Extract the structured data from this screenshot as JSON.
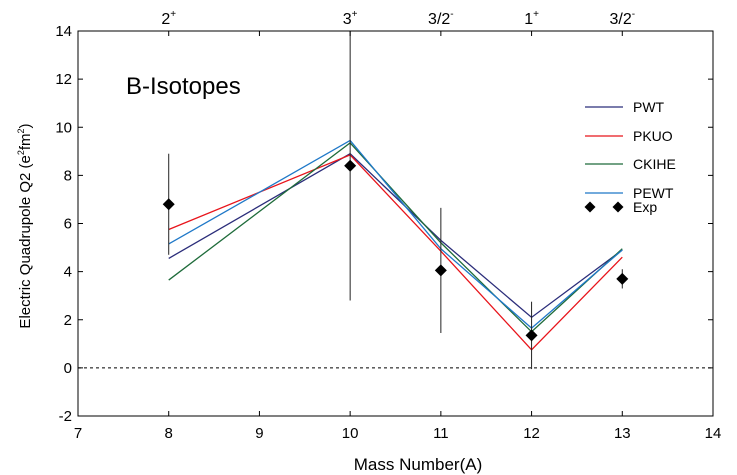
{
  "chart_data": {
    "type": "line",
    "title": "B-Isotopes",
    "xlabel": "Mass Number(A)",
    "ylabel": "Electric Quadrupole Q2 (e2fm2)",
    "ylabel_parts": {
      "main": "Electric Quadrupole Q2 (e",
      "sup1": "2",
      "mid": "fm",
      "sup2": "2",
      "end": ")"
    },
    "xlim": [
      7,
      14
    ],
    "ylim": [
      -2,
      14
    ],
    "xticks": [
      7,
      8,
      9,
      10,
      11,
      12,
      13,
      14
    ],
    "yticks": [
      -2,
      0,
      2,
      4,
      6,
      8,
      10,
      12,
      14
    ],
    "top_labels": [
      {
        "x": 8,
        "base": "2",
        "sup": "+"
      },
      {
        "x": 10,
        "base": "3",
        "sup": "+"
      },
      {
        "x": 11,
        "base": "3/2",
        "sup": "-"
      },
      {
        "x": 12,
        "base": "1",
        "sup": "+"
      },
      {
        "x": 13,
        "base": "3/2",
        "sup": "-"
      }
    ],
    "x": [
      8,
      10,
      11,
      12,
      13
    ],
    "series": [
      {
        "name": "PWT",
        "color": "#2b2d7a",
        "values": [
          4.55,
          8.9,
          5.3,
          2.1,
          4.9
        ]
      },
      {
        "name": "PKUO",
        "color": "#e8141b",
        "values": [
          5.75,
          8.85,
          4.85,
          0.75,
          4.6
        ]
      },
      {
        "name": "CKIHE",
        "color": "#1e6b3a",
        "values": [
          3.65,
          9.35,
          5.2,
          1.5,
          4.95
        ]
      },
      {
        "name": "PEWT",
        "color": "#1f78c8",
        "values": [
          5.15,
          9.45,
          4.95,
          1.65,
          4.9
        ]
      }
    ],
    "experiment": {
      "name": "Exp",
      "color": "#000000",
      "points": [
        {
          "x": 8,
          "y": 6.8,
          "err": 2.1
        },
        {
          "x": 10,
          "y": 8.4,
          "err": 5.6
        },
        {
          "x": 11,
          "y": 4.05,
          "err": 2.6
        },
        {
          "x": 12,
          "y": 1.35,
          "err": 1.4
        },
        {
          "x": 13,
          "y": 3.7,
          "err": 0.4
        }
      ]
    },
    "reference_line": {
      "y": 0,
      "style": "dashed"
    },
    "legend_position": "right"
  }
}
